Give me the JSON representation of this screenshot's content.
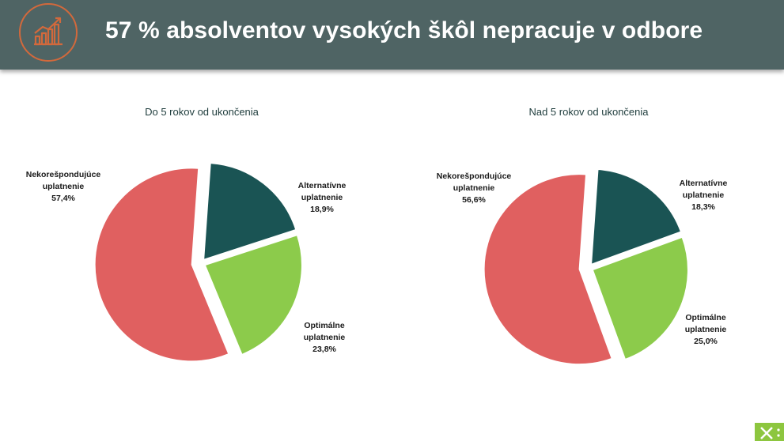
{
  "header": {
    "title": "57 % absolventov vysokých škôl nepracuje v odbore",
    "icon": "trend-chart-icon",
    "background": "#4f6464",
    "icon_color": "#d2693c"
  },
  "corner_logo": {
    "icon": "logo-x-icon",
    "color": "#8dc63f"
  },
  "chart_data": [
    {
      "type": "pie",
      "title": "Do 5 rokov od ukončenia",
      "slices": [
        {
          "line1": "Alternatívne",
          "line2": "uplatnenie",
          "value_label": "18,9%",
          "value": 18.9,
          "color": "#1a5454"
        },
        {
          "line1": "Optimálne",
          "line2": "uplatnenie",
          "value_label": "23,8%",
          "value": 23.8,
          "color": "#8ccb4b"
        },
        {
          "line1": "Nekorešpondujúce",
          "line2": "uplatnenie",
          "value_label": "57,4%",
          "value": 57.4,
          "color": "#e06060"
        }
      ]
    },
    {
      "type": "pie",
      "title": "Nad 5 rokov od ukončenia",
      "slices": [
        {
          "line1": "Alternatívne",
          "line2": "uplatnenie",
          "value_label": "18,3%",
          "value": 18.3,
          "color": "#1a5454"
        },
        {
          "line1": "Optimálne",
          "line2": "uplatnenie",
          "value_label": "25,0%",
          "value": 25.0,
          "color": "#8ccb4b"
        },
        {
          "line1": "Nekorešpondujúce",
          "line2": "uplatnenie",
          "value_label": "56,6%",
          "value": 56.6,
          "color": "#e06060"
        }
      ]
    }
  ]
}
